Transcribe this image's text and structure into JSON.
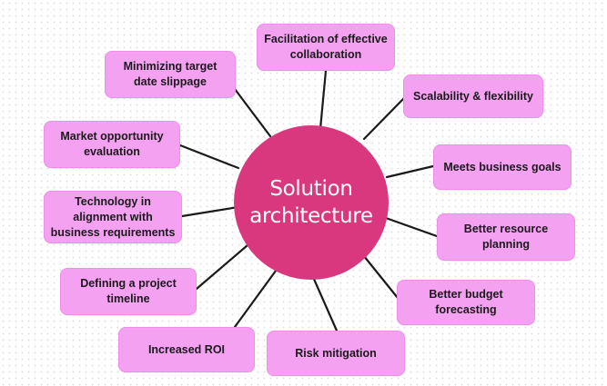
{
  "center": {
    "line1": "Solution",
    "line2": "architecture"
  },
  "nodes": {
    "collaboration": "Facilitation of effective collaboration",
    "slippage": "Minimizing target date slippage",
    "scalability": "Scalability & flexibility",
    "market": "Market opportunity evaluation",
    "goals": "Meets business goals",
    "technology": "Technology in alignment with business requirements",
    "resource": "Better resource planning",
    "timeline": "Defining a project timeline",
    "budget": "Better budget forecasting",
    "roi": "Increased ROI",
    "risk": "Risk mitigation"
  },
  "colors": {
    "center_fill": "#d9387f",
    "node_fill": "#f4a1f2",
    "connector": "#1a1a1a"
  }
}
